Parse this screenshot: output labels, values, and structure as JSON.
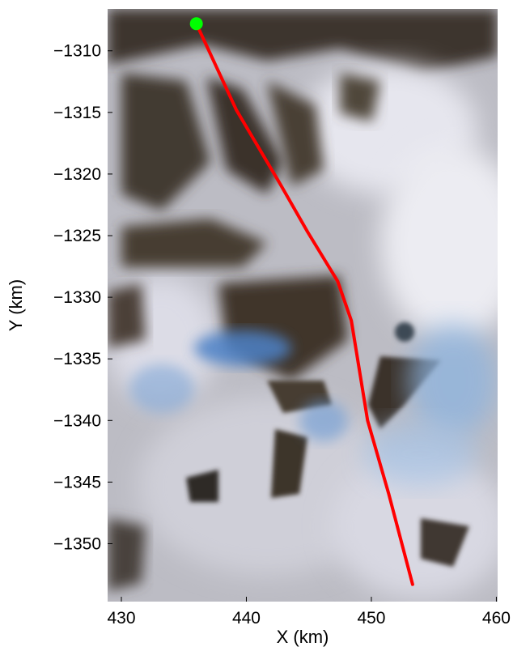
{
  "chart_data": {
    "type": "map",
    "xlabel": "X (km)",
    "ylabel": "Y (km)",
    "xlim": [
      428.9,
      460.1
    ],
    "ylim": [
      -1354.7,
      -1306.6
    ],
    "xticks": [
      430,
      440,
      450,
      460
    ],
    "yticks": [
      -1310,
      -1315,
      -1320,
      -1325,
      -1330,
      -1335,
      -1340,
      -1345,
      -1350
    ],
    "xtick_labels": [
      "430",
      "440",
      "450",
      "460"
    ],
    "ytick_labels": [
      "−1310",
      "−1315",
      "−1320",
      "−1325",
      "−1330",
      "−1335",
      "−1340",
      "−1345",
      "−1350"
    ],
    "grid": false,
    "background": "satellite imagery of glaciated mountain terrain",
    "track": {
      "color": "#ff0000",
      "x": [
        436.0,
        439.2,
        442.7,
        444.9,
        447.3,
        448.4,
        449.7,
        451.4,
        453.3
      ],
      "y": [
        -1307.8,
        -1314.8,
        -1320.8,
        -1324.7,
        -1328.7,
        -1331.9,
        -1340.0,
        -1346.0,
        -1353.3
      ]
    },
    "start_marker": {
      "color": "#00ff00",
      "x": 436.0,
      "y": -1307.8
    }
  }
}
